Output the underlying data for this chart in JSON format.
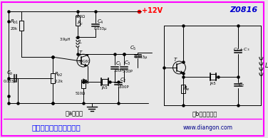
{
  "bg_color": "#e8e8e8",
  "border_color": "#ff00ff",
  "title_text": "串联型晶体振荡电路实例",
  "title_color": "#0000ff",
  "watermark": "www.diangon.com",
  "watermark_color": "#00008b",
  "label_a": "（a）电路",
  "label_b": "（b）交流通路",
  "label_color": "#000000",
  "vcc_text": "+12V",
  "vcc_color": "#ff0000",
  "z0816_text": "Z0816",
  "z0816_color": "#0000cd",
  "cc": "#000000",
  "lw": 0.7,
  "sep_line_color": "#ff00ff"
}
